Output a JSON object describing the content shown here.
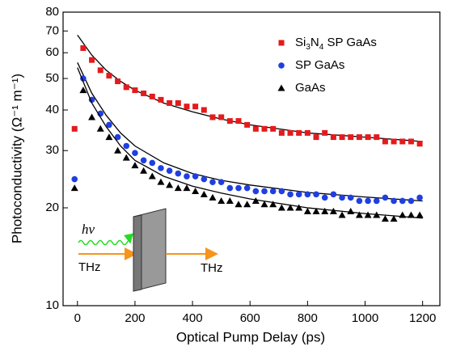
{
  "chart_data": {
    "type": "scatter",
    "xlabel": "Optical Pump Delay (ps)",
    "ylabel": "Photoconductivity (Ω⁻¹ m⁻¹)",
    "xlim": [
      -50,
      1260
    ],
    "xticks": [
      0,
      200,
      400,
      600,
      800,
      1000,
      1200
    ],
    "ylim": [
      10,
      80
    ],
    "yticks": [
      10,
      20,
      30,
      40,
      50,
      60,
      70,
      80
    ],
    "ylog": true,
    "legend": "top-right",
    "x": [
      -10,
      20,
      50,
      80,
      110,
      140,
      170,
      200,
      230,
      260,
      290,
      320,
      350,
      380,
      410,
      440,
      470,
      500,
      530,
      560,
      590,
      620,
      650,
      680,
      710,
      740,
      770,
      800,
      830,
      860,
      890,
      920,
      950,
      980,
      1010,
      1040,
      1070,
      1100,
      1130,
      1160,
      1190
    ],
    "fit_x": [
      0,
      50,
      100,
      150,
      200,
      300,
      400,
      500,
      600,
      800,
      1000,
      1200
    ],
    "series": [
      {
        "name": "Si3N4 SP GaAs",
        "color": "#e41a1c",
        "marker": "square",
        "values": [
          35,
          62,
          57,
          53,
          51,
          49,
          47,
          46,
          45,
          44,
          43,
          42,
          42,
          41,
          41,
          40,
          38,
          38,
          37,
          37,
          36,
          35,
          35,
          35,
          34,
          34,
          34,
          34,
          33,
          34,
          33,
          33,
          33,
          33,
          33,
          33,
          32,
          32,
          32,
          32,
          31.5
        ],
        "fit": [
          68,
          59,
          53,
          49,
          46,
          42,
          39.5,
          37.5,
          36,
          34,
          33,
          32
        ]
      },
      {
        "name": "SP GaAs",
        "color": "#1f3fe0",
        "marker": "circle",
        "values": [
          24.5,
          50,
          43,
          39,
          36,
          33,
          31,
          29.5,
          28,
          27.5,
          26.5,
          26,
          25.5,
          25,
          25,
          24.5,
          24,
          24,
          23,
          23,
          23,
          22.5,
          22.5,
          22.5,
          22.5,
          22,
          22,
          22,
          22,
          21.5,
          22,
          21.5,
          21.5,
          21,
          21,
          21,
          21.5,
          21,
          21,
          21,
          21.5
        ],
        "fit": [
          56,
          45,
          38.5,
          34,
          31,
          27.5,
          25.5,
          24.3,
          23.5,
          22.3,
          21.6,
          21
        ]
      },
      {
        "name": "GaAs",
        "color": "#000000",
        "marker": "triangle",
        "values": [
          23,
          46,
          38,
          35,
          33,
          30,
          28.5,
          27,
          26,
          25,
          24,
          23.5,
          23,
          23,
          22.5,
          22,
          21.5,
          21,
          21,
          20.5,
          20.5,
          21,
          20.5,
          20.5,
          20,
          20,
          20,
          19.5,
          19.5,
          19.5,
          19.5,
          19,
          19.5,
          19,
          19,
          19,
          18.5,
          18.5,
          19,
          19,
          19
        ],
        "fit": [
          54,
          42,
          35.5,
          31,
          28,
          25,
          23.3,
          22.2,
          21.3,
          20,
          19.2,
          18.6
        ]
      }
    ],
    "inset": {
      "pump": "hν",
      "input": "THz",
      "output": "THz"
    }
  }
}
